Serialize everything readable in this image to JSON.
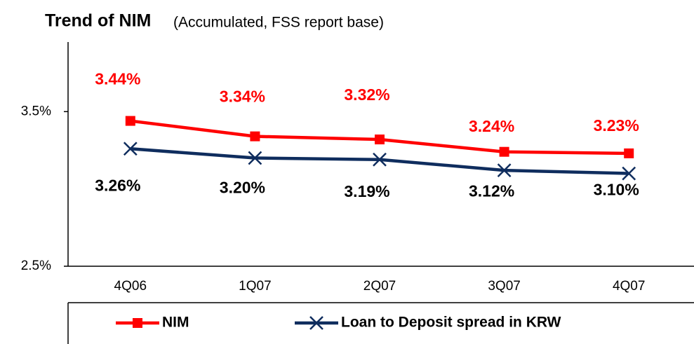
{
  "chart_data": {
    "type": "line",
    "title": "Trend of NIM",
    "subtitle": "(Accumulated, FSS report base)",
    "categories": [
      "4Q06",
      "1Q07",
      "2Q07",
      "3Q07",
      "4Q07"
    ],
    "series": [
      {
        "name": "NIM",
        "color": "#ff0000",
        "marker": "square",
        "values": [
          3.44,
          3.34,
          3.32,
          3.24,
          3.23
        ],
        "value_labels": [
          "3.44%",
          "3.34%",
          "3.32%",
          "3.24%",
          "3.23%"
        ]
      },
      {
        "name": "Loan to Deposit spread in KRW",
        "color": "#0f2d5e",
        "marker": "x",
        "values": [
          3.26,
          3.2,
          3.19,
          3.12,
          3.1
        ],
        "value_labels": [
          "3.26%",
          "3.20%",
          "3.19%",
          "3.12%",
          "3.10%"
        ]
      }
    ],
    "ylim": [
      2.5,
      3.95
    ],
    "yticks": [
      {
        "value": 2.5,
        "label": "2.5%"
      },
      {
        "value": 3.5,
        "label": "3.5%"
      }
    ],
    "grid": false,
    "legend": "bottom"
  }
}
